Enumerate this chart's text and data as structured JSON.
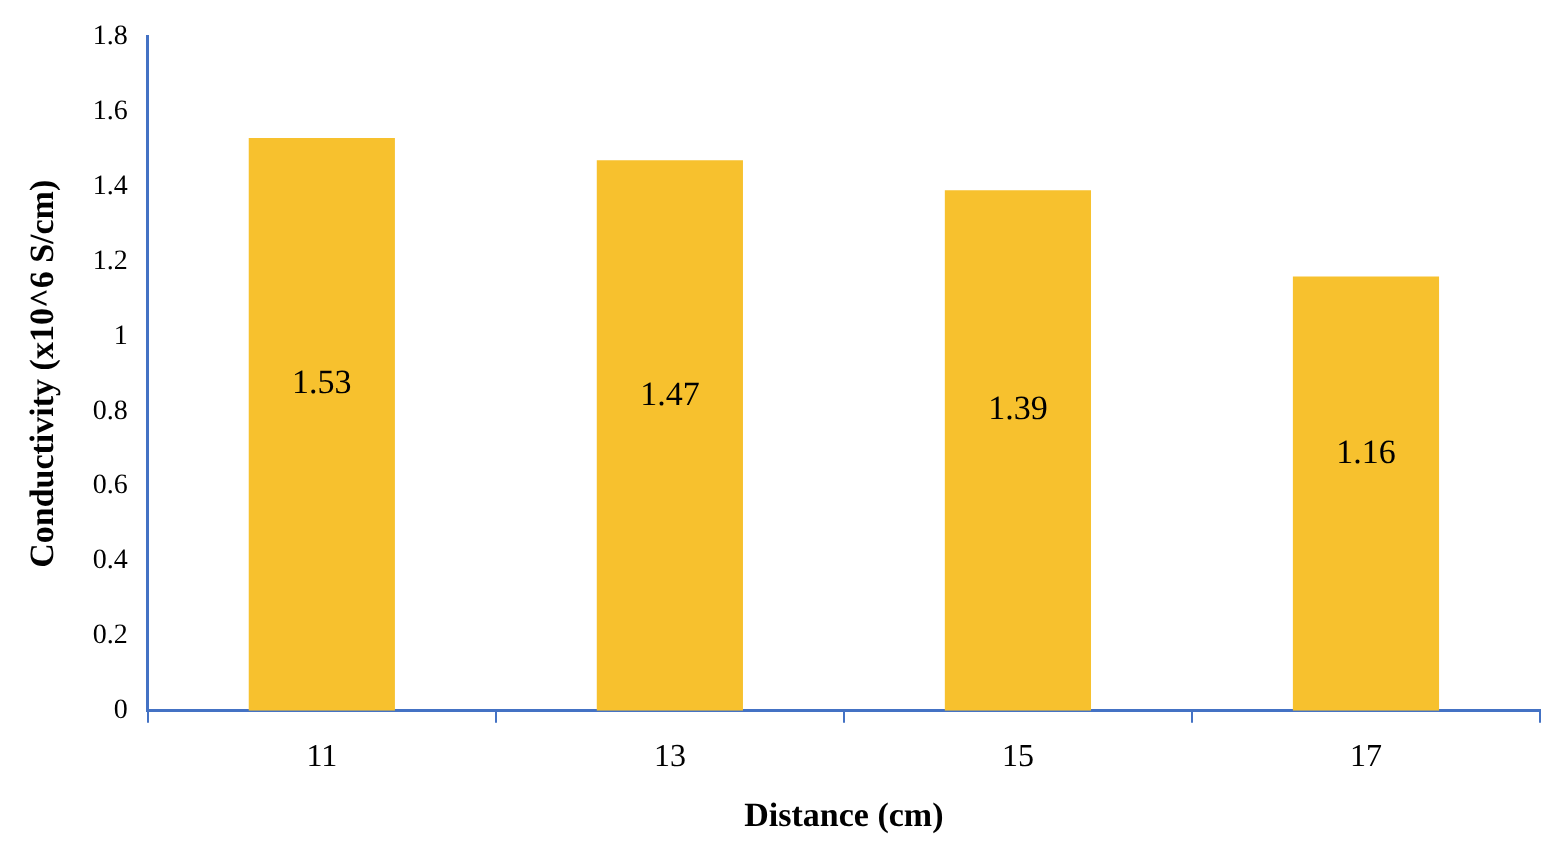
{
  "chart_data": {
    "type": "bar",
    "xlabel": "Distance (cm)",
    "ylabel": "Conductivity (x10^6 S/cm)",
    "categories": [
      "11",
      "13",
      "15",
      "17"
    ],
    "values": [
      1.53,
      1.47,
      1.39,
      1.16
    ],
    "color": "#f7c12e",
    "ylim": [
      0,
      1.8
    ],
    "yticks": [
      0,
      0.2,
      0.4,
      0.6,
      0.8,
      1,
      1.2,
      1.4,
      1.6,
      1.8
    ],
    "data_labels": true,
    "grid": false,
    "legend": false
  }
}
